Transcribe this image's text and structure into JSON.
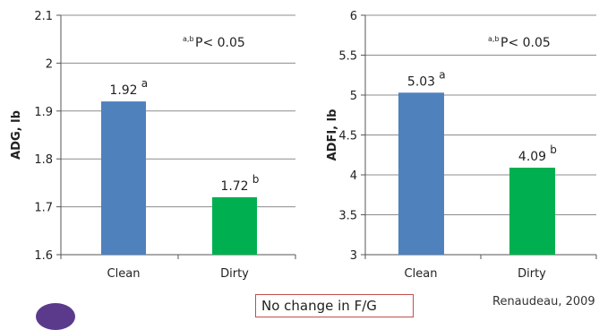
{
  "chart_data": [
    {
      "type": "bar",
      "categories": [
        "Clean",
        "Dirty"
      ],
      "values": [
        1.92,
        1.72
      ],
      "value_labels": [
        "1.92",
        "1.72"
      ],
      "letters": [
        "a",
        "b"
      ],
      "ylabel": "ADG, lb",
      "ylim": [
        1.6,
        2.1
      ],
      "yticks": [
        1.6,
        1.7,
        1.8,
        1.9,
        2,
        2.1
      ],
      "ytick_labels": [
        "1.6",
        "1.7",
        "1.8",
        "1.9",
        "2",
        "2.1"
      ],
      "annotation_sup": "a,b",
      "annotation": "P< 0.05",
      "colors": [
        "#4f81bd",
        "#00b050"
      ],
      "grid": true
    },
    {
      "type": "bar",
      "categories": [
        "Clean",
        "Dirty"
      ],
      "values": [
        5.03,
        4.09
      ],
      "value_labels": [
        "5.03",
        "4.09"
      ],
      "letters": [
        "a",
        "b"
      ],
      "ylabel": "ADFI, lb",
      "ylim": [
        3,
        6
      ],
      "yticks": [
        3,
        3.5,
        4,
        4.5,
        5,
        5.5,
        6
      ],
      "ytick_labels": [
        "3",
        "3.5",
        "4",
        "4.5",
        "5",
        "5.5",
        "6"
      ],
      "annotation_sup": "a,b",
      "annotation": "P< 0.05",
      "colors": [
        "#4f81bd",
        "#00b050"
      ],
      "grid": true
    }
  ],
  "note": "No change in F/G",
  "source": "Renaudeau, 2009"
}
